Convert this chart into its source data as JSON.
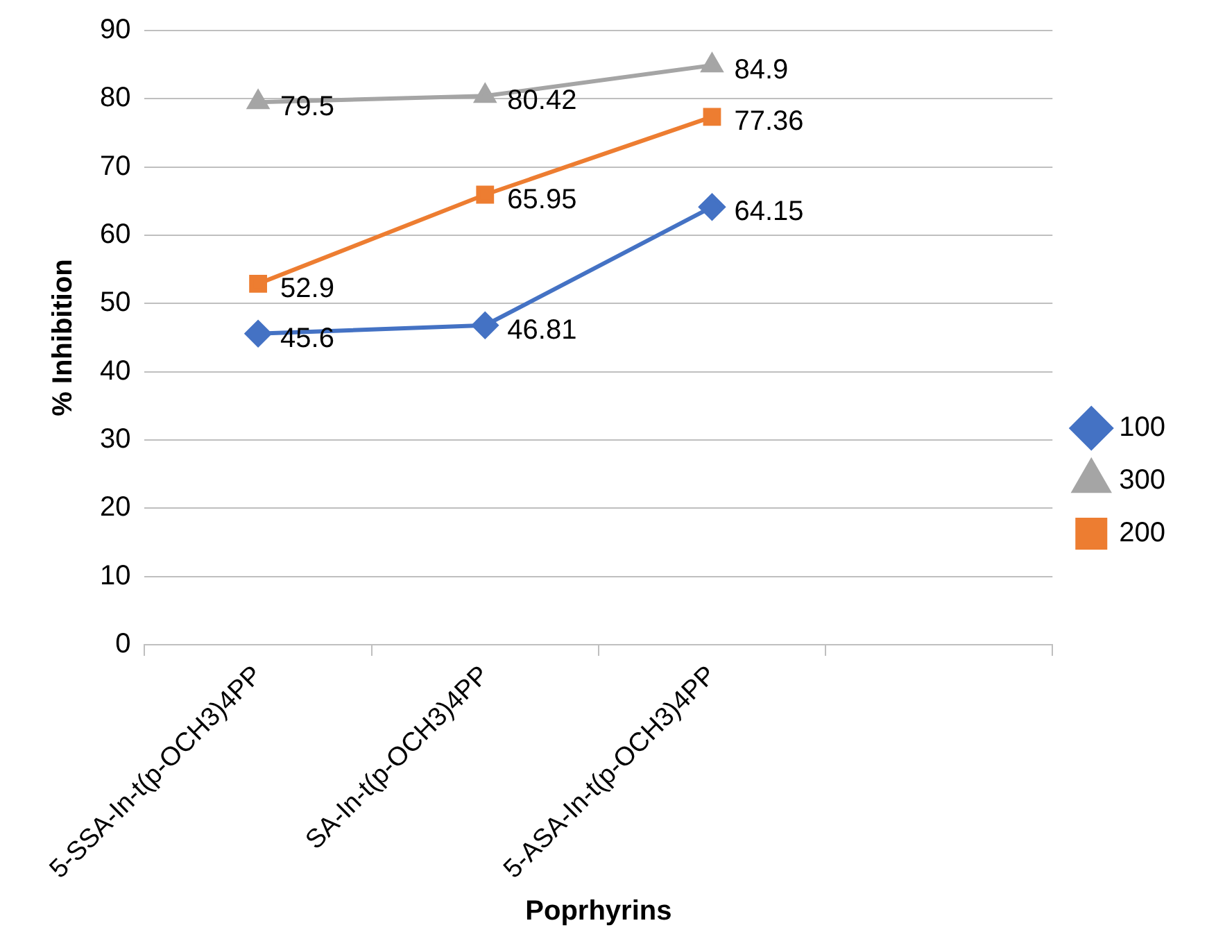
{
  "chart_data": {
    "type": "line",
    "xlabel": "Poprhyrins",
    "ylabel": "% Inhibition",
    "categories": [
      "5-SSA-In-t(p-OCH3)4PP",
      "SA-In-t(p-OCH3)4PP",
      "5-ASA-In-t(p-OCH3)4PP",
      null
    ],
    "series": [
      {
        "name": "100",
        "color": "#4472c4",
        "marker": "diamond",
        "values": [
          45.6,
          46.81,
          64.15,
          null
        ]
      },
      {
        "name": "300",
        "color": "#a5a5a5",
        "marker": "triangle",
        "values": [
          79.5,
          80.42,
          84.9,
          null
        ]
      },
      {
        "name": "200",
        "color": "#ed7d31",
        "marker": "square",
        "values": [
          52.9,
          65.95,
          77.36,
          null
        ]
      }
    ],
    "ylim": [
      0,
      90
    ],
    "yticks": [
      0,
      10,
      20,
      30,
      40,
      50,
      60,
      70,
      80,
      90
    ],
    "grid": "y",
    "legend": "right",
    "data_labels": true
  }
}
